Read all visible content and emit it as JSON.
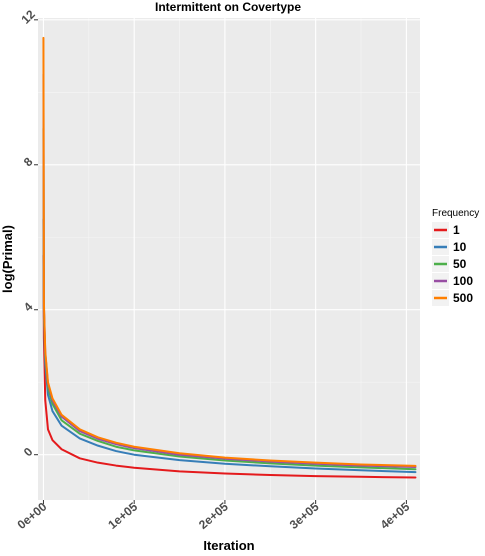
{
  "chart_data": {
    "type": "line",
    "title": "Intermittent on Covertype",
    "xlabel": "Iteration",
    "ylabel": "log(Primal)",
    "xlim": [
      -6000,
      415000
    ],
    "ylim": [
      -1.25,
      12.05
    ],
    "x_ticks": [
      0,
      100000,
      200000,
      300000,
      400000
    ],
    "x_tick_labels": [
      "0e+00",
      "1e+05",
      "2e+05",
      "3e+05",
      "4e+05"
    ],
    "y_ticks": [
      0,
      4,
      8,
      12
    ],
    "y_tick_labels": [
      "0",
      "4",
      "8",
      "12"
    ],
    "grid": true,
    "legend": {
      "title": "Frequency",
      "position": "right"
    },
    "series": [
      {
        "name": "1",
        "color": "#e41a1c",
        "x": [
          0,
          500,
          2000,
          5000,
          10000,
          20000,
          40000,
          60000,
          80000,
          100000,
          150000,
          200000,
          250000,
          300000,
          350000,
          410000
        ],
        "y": [
          5.5,
          3.2,
          1.5,
          0.7,
          0.4,
          0.15,
          -0.1,
          -0.22,
          -0.3,
          -0.36,
          -0.46,
          -0.52,
          -0.56,
          -0.59,
          -0.61,
          -0.63
        ]
      },
      {
        "name": "10",
        "color": "#377eb8",
        "x": [
          0,
          500,
          2000,
          5000,
          10000,
          20000,
          40000,
          60000,
          80000,
          100000,
          150000,
          200000,
          250000,
          300000,
          350000,
          410000
        ],
        "y": [
          6.5,
          3.8,
          2.5,
          1.65,
          1.2,
          0.8,
          0.45,
          0.25,
          0.1,
          0.0,
          -0.15,
          -0.25,
          -0.32,
          -0.38,
          -0.43,
          -0.48
        ]
      },
      {
        "name": "50",
        "color": "#4daf4a",
        "x": [
          0,
          500,
          2000,
          5000,
          10000,
          20000,
          40000,
          60000,
          80000,
          100000,
          150000,
          200000,
          250000,
          300000,
          350000,
          410000
        ],
        "y": [
          9.0,
          4.0,
          2.7,
          1.85,
          1.4,
          0.95,
          0.58,
          0.38,
          0.22,
          0.12,
          -0.05,
          -0.16,
          -0.24,
          -0.3,
          -0.35,
          -0.4
        ]
      },
      {
        "name": "100",
        "color": "#984ea3",
        "x": [
          0,
          500,
          2000,
          5000,
          10000,
          20000,
          40000,
          60000,
          80000,
          100000,
          150000,
          200000,
          250000,
          300000,
          350000,
          410000
        ],
        "y": [
          10.5,
          4.1,
          2.8,
          1.95,
          1.5,
          1.05,
          0.65,
          0.44,
          0.29,
          0.18,
          0.0,
          -0.11,
          -0.19,
          -0.25,
          -0.3,
          -0.34
        ]
      },
      {
        "name": "500",
        "color": "#ff7f00",
        "x": [
          0,
          500,
          2000,
          5000,
          10000,
          20000,
          40000,
          60000,
          80000,
          100000,
          150000,
          200000,
          250000,
          300000,
          350000,
          410000
        ],
        "y": [
          11.5,
          4.2,
          2.85,
          2.0,
          1.55,
          1.1,
          0.7,
          0.48,
          0.33,
          0.22,
          0.04,
          -0.08,
          -0.16,
          -0.22,
          -0.27,
          -0.31
        ]
      }
    ]
  }
}
